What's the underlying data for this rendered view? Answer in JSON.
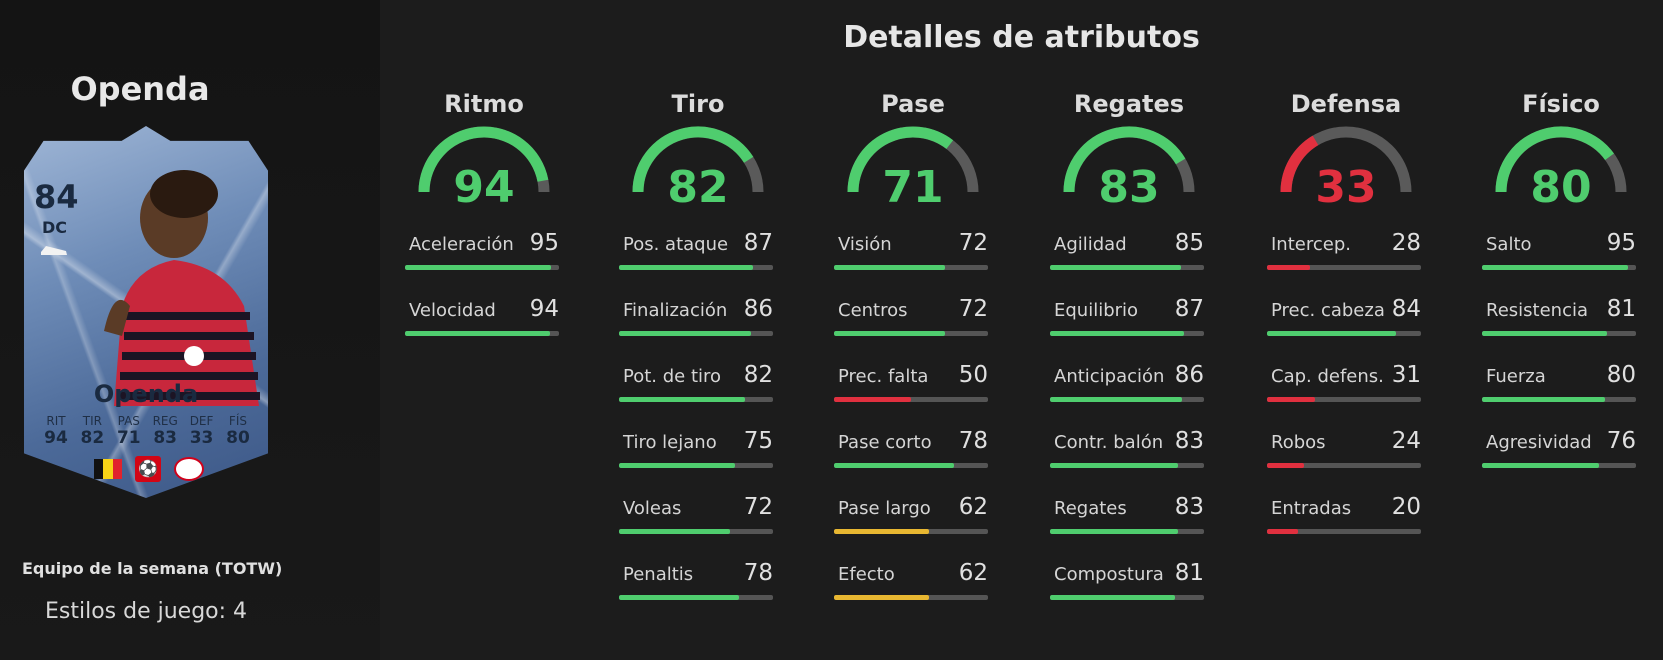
{
  "title": "Detalles de atributos",
  "colors": {
    "good": "#4fcd6e",
    "average": "#e8b731",
    "poor": "#e1303f",
    "track": "#555555"
  },
  "player": {
    "name": "Openda",
    "card_name": "Openda",
    "rating": "84",
    "position": "DC",
    "card_type": "Equipo de la semana (TOTW)",
    "playstyles": "Estilos de juego: 4",
    "stats": [
      {
        "label": "RIT",
        "value": "94"
      },
      {
        "label": "TIR",
        "value": "82"
      },
      {
        "label": "PAS",
        "value": "71"
      },
      {
        "label": "REG",
        "value": "83"
      },
      {
        "label": "DEF",
        "value": "33"
      },
      {
        "label": "FÍS",
        "value": "80"
      }
    ]
  },
  "categories": [
    {
      "name": "Ritmo",
      "value": 94,
      "color": "#4fcd6e",
      "attributes": [
        {
          "label": "Aceleración",
          "value": 95
        },
        {
          "label": "Velocidad",
          "value": 94
        }
      ]
    },
    {
      "name": "Tiro",
      "value": 82,
      "color": "#4fcd6e",
      "attributes": [
        {
          "label": "Pos. ataque",
          "value": 87
        },
        {
          "label": "Finalización",
          "value": 86
        },
        {
          "label": "Pot. de tiro",
          "value": 82
        },
        {
          "label": "Tiro lejano",
          "value": 75
        },
        {
          "label": "Voleas",
          "value": 72
        },
        {
          "label": "Penaltis",
          "value": 78
        }
      ]
    },
    {
      "name": "Pase",
      "value": 71,
      "color": "#4fcd6e",
      "attributes": [
        {
          "label": "Visión",
          "value": 72
        },
        {
          "label": "Centros",
          "value": 72
        },
        {
          "label": "Prec. falta",
          "value": 50
        },
        {
          "label": "Pase corto",
          "value": 78
        },
        {
          "label": "Pase largo",
          "value": 62
        },
        {
          "label": "Efecto",
          "value": 62
        }
      ]
    },
    {
      "name": "Regates",
      "value": 83,
      "color": "#4fcd6e",
      "attributes": [
        {
          "label": "Agilidad",
          "value": 85
        },
        {
          "label": "Equilibrio",
          "value": 87
        },
        {
          "label": "Anticipación",
          "value": 86
        },
        {
          "label": "Contr. balón",
          "value": 83
        },
        {
          "label": "Regates",
          "value": 83
        },
        {
          "label": "Compostura",
          "value": 81
        }
      ]
    },
    {
      "name": "Defensa",
      "value": 33,
      "color": "#e1303f",
      "attributes": [
        {
          "label": "Intercep.",
          "value": 28
        },
        {
          "label": "Prec. cabeza",
          "value": 84
        },
        {
          "label": "Cap. defens.",
          "value": 31
        },
        {
          "label": "Robos",
          "value": 24
        },
        {
          "label": "Entradas",
          "value": 20
        }
      ]
    },
    {
      "name": "Físico",
      "value": 80,
      "color": "#4fcd6e",
      "attributes": [
        {
          "label": "Salto",
          "value": 95
        },
        {
          "label": "Resistencia",
          "value": 81
        },
        {
          "label": "Fuerza",
          "value": 80
        },
        {
          "label": "Agresividad",
          "value": 76
        }
      ]
    }
  ]
}
